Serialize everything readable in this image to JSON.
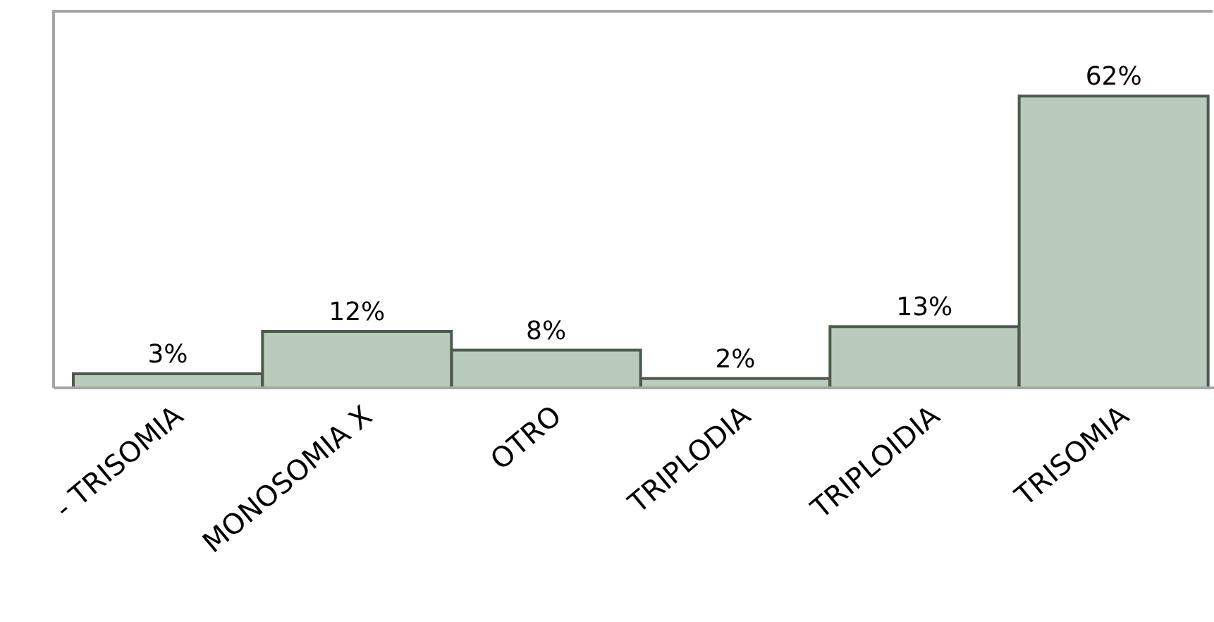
{
  "chart_data": {
    "type": "bar",
    "categories": [
      "- TRISOMIA",
      "MONOSOMIA X",
      "OTRO",
      "TRIPLODIA",
      "TRIPLOIDIA",
      "TRISOMIA"
    ],
    "values": [
      3,
      12,
      8,
      2,
      13,
      62
    ],
    "value_labels": [
      "3%",
      "12%",
      "8%",
      "2%",
      "13%",
      "62%"
    ],
    "color": "#b9cbbb",
    "ylim": [
      0,
      80
    ],
    "tick_labels": "x"
  }
}
